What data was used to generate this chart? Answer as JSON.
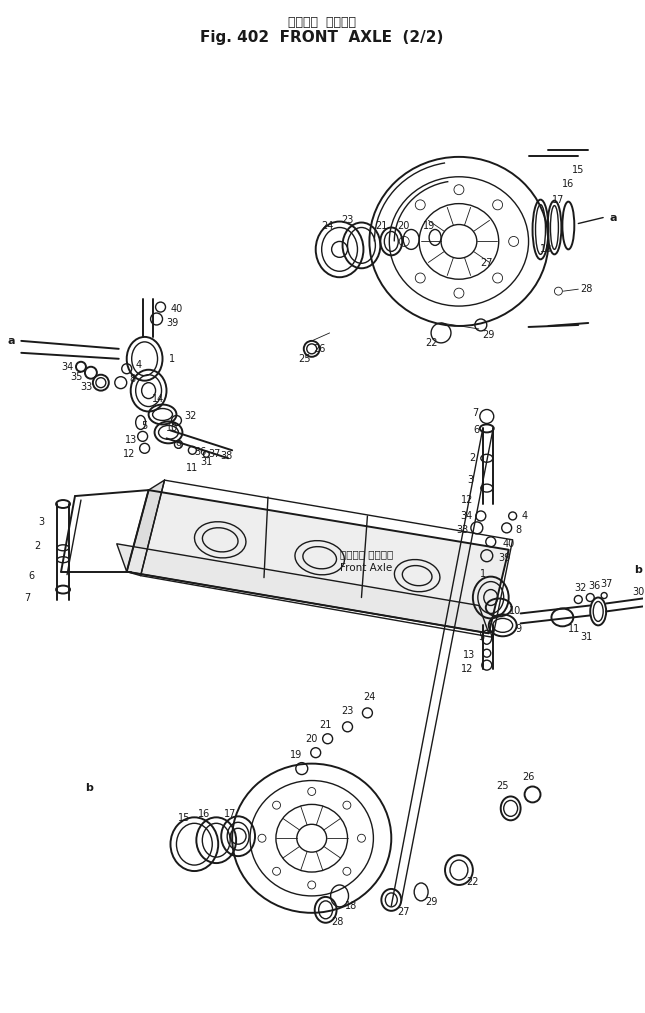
{
  "title_japanese": "フロント  アクスル",
  "title_english": "Fig. 402  FRONT  AXLE  (2/2)",
  "bg_color": "#ffffff",
  "line_color": "#1a1a1a",
  "figsize": [
    6.45,
    10.13
  ],
  "dpi": 100,
  "annotation_ja": "フロント アクスル",
  "annotation_en": "Front Axle"
}
